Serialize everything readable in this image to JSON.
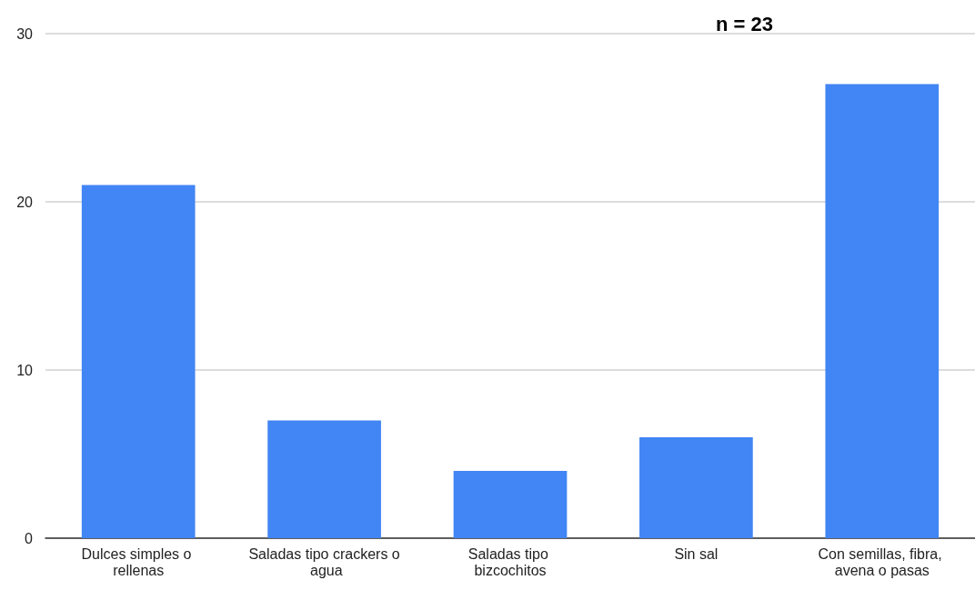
{
  "chart_data": {
    "type": "bar",
    "title": "n = 23",
    "categories": [
      "Dulces simples o rellenas",
      "Saladas tipo crackers o agua",
      "Saladas tipo bizcochitos",
      "Sin sal",
      "Con semillas, fibra, avena o pasas"
    ],
    "values": [
      21,
      7,
      4,
      6,
      27
    ],
    "color": "#4285f4",
    "ylim": [
      0,
      30
    ],
    "yticks": [
      0,
      10,
      20,
      30
    ],
    "grid": "y"
  }
}
